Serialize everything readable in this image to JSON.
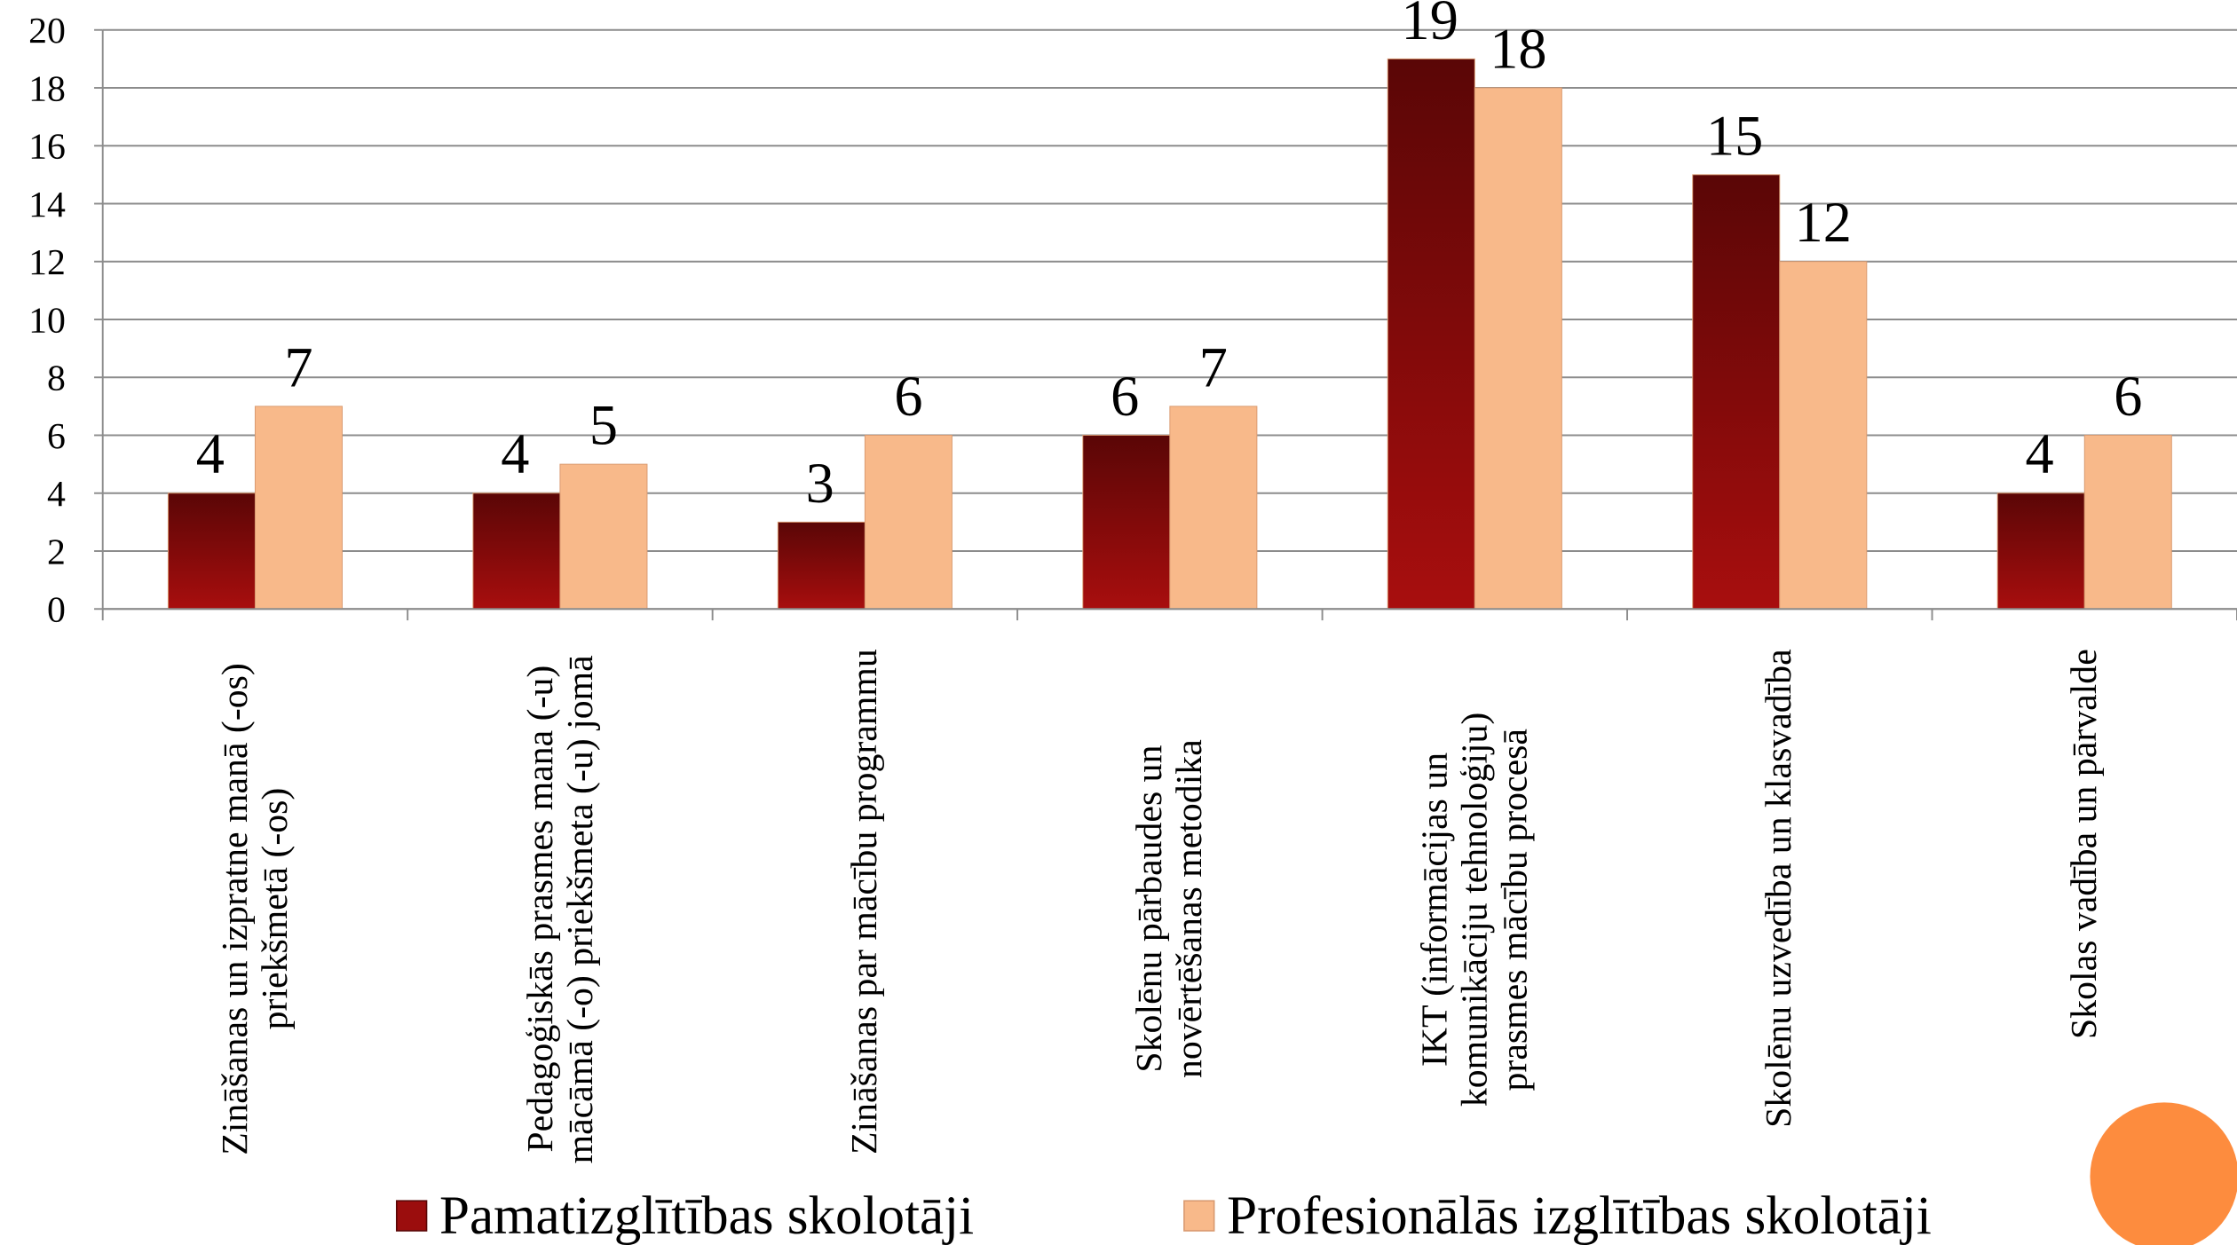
{
  "chart_data": {
    "type": "bar",
    "categories": [
      "Zināšanas un izpratne manā (-os) priekšmetā (-os)",
      "Pedagoģiskās prasmes mana (-u) mācāmā (-o) priekšmeta (-u) jomā",
      "Zināšanas par mācību programmu",
      "Skolēnu pārbaudes un novērtēšanas metodika",
      "IKT (informācijas un komunikāciju tehnoloģiju) prasmes mācību procesā",
      "Skolēnu uzvedība un klasvadība",
      "Skolas vadība un pārvalde"
    ],
    "series": [
      {
        "name": "Pamatizglītības skolotāji",
        "color": "#9b0d0d",
        "values": [
          4,
          4,
          3,
          6,
          19,
          15,
          4
        ]
      },
      {
        "name": "Profesionālās izglītības skolotāji",
        "color": "#f8b98a",
        "values": [
          7,
          5,
          6,
          7,
          18,
          12,
          6
        ]
      }
    ],
    "ylim": [
      0,
      20
    ],
    "yticks": [
      0,
      2,
      4,
      6,
      8,
      10,
      12,
      14,
      16,
      18,
      20
    ],
    "grid": true,
    "legend": "bottom"
  }
}
